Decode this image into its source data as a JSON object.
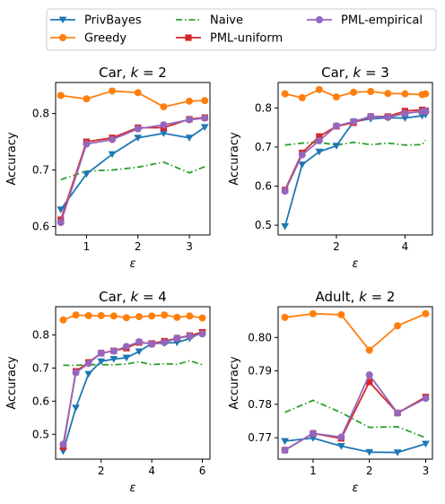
{
  "legend": {
    "placement": "top-center",
    "entries": [
      {
        "name": "PrivBayes",
        "color": "#1f77b4",
        "marker": "triangle-down",
        "linestyle": "solid"
      },
      {
        "name": "Naive",
        "color": "#2ca02c",
        "marker": "none",
        "linestyle": "dashdot"
      },
      {
        "name": "PML-empirical",
        "color": "#9467bd",
        "marker": "circle",
        "linestyle": "solid"
      },
      {
        "name": "Greedy",
        "color": "#ff7f0e",
        "marker": "circle",
        "linestyle": "solid"
      },
      {
        "name": "PML-uniform",
        "color": "#d62728",
        "marker": "square",
        "linestyle": "solid"
      }
    ]
  },
  "chart_data": [
    {
      "type": "line",
      "title": "Car, k = 2",
      "title_prefix": "Car, ",
      "title_var": "k",
      "title_suffix": " = 2",
      "xlabel": "ε",
      "ylabel": "Accuracy",
      "xlim": [
        0.4,
        3.4
      ],
      "ylim": [
        0.585,
        0.855
      ],
      "xticks": [
        1,
        2,
        3
      ],
      "yticks": [
        0.6,
        0.7,
        0.8
      ],
      "xticklabels": [
        "1",
        "2",
        "3"
      ],
      "yticklabels": [
        "0.6",
        "0.7",
        "0.8"
      ],
      "x": [
        0.5,
        1.0,
        1.5,
        2.0,
        2.5,
        3.0,
        3.3
      ],
      "series": [
        {
          "name": "PrivBayes",
          "values": [
            0.63,
            0.693,
            0.728,
            0.757,
            0.765,
            0.757,
            0.776
          ]
        },
        {
          "name": "Greedy",
          "values": [
            0.832,
            0.826,
            0.84,
            0.837,
            0.812,
            0.822,
            0.823
          ]
        },
        {
          "name": "Naive",
          "values": [
            0.683,
            0.698,
            0.7,
            0.705,
            0.714,
            0.695,
            0.706
          ]
        },
        {
          "name": "PML-uniform",
          "values": [
            0.612,
            0.75,
            0.757,
            0.775,
            0.775,
            0.79,
            0.793
          ]
        },
        {
          "name": "PML-empirical",
          "values": [
            0.607,
            0.746,
            0.754,
            0.773,
            0.78,
            0.789,
            0.792
          ]
        }
      ]
    },
    {
      "type": "line",
      "title": "Car, k = 3",
      "title_prefix": "Car, ",
      "title_var": "k",
      "title_suffix": " = 3",
      "xlabel": "ε",
      "ylabel": "Accuracy",
      "xlim": [
        0.3,
        4.8
      ],
      "ylim": [
        0.475,
        0.865
      ],
      "xticks": [
        2,
        4
      ],
      "yticks": [
        0.5,
        0.6,
        0.7,
        0.8
      ],
      "xticklabels": [
        "2",
        "4"
      ],
      "yticklabels": [
        "0.5",
        "0.6",
        "0.7",
        "0.8"
      ],
      "x": [
        0.5,
        1.0,
        1.5,
        2.0,
        2.5,
        3.0,
        3.5,
        4.0,
        4.5,
        4.6
      ],
      "series": [
        {
          "name": "PrivBayes",
          "values": [
            0.497,
            0.655,
            0.688,
            0.703,
            0.765,
            0.772,
            0.775,
            0.774,
            0.78,
            0.783
          ]
        },
        {
          "name": "Greedy",
          "values": [
            0.836,
            0.826,
            0.847,
            0.828,
            0.84,
            0.842,
            0.837,
            0.836,
            0.834,
            0.836
          ]
        },
        {
          "name": "Naive",
          "values": [
            0.705,
            0.71,
            0.712,
            0.705,
            0.712,
            0.706,
            0.71,
            0.705,
            0.706,
            0.718
          ]
        },
        {
          "name": "PML-uniform",
          "values": [
            0.59,
            0.685,
            0.727,
            0.753,
            0.762,
            0.778,
            0.778,
            0.792,
            0.795,
            0.793
          ]
        },
        {
          "name": "PML-empirical",
          "values": [
            0.587,
            0.68,
            0.716,
            0.754,
            0.765,
            0.778,
            0.776,
            0.786,
            0.791,
            0.792
          ]
        }
      ]
    },
    {
      "type": "line",
      "title": "Car, k = 4",
      "title_prefix": "Car, ",
      "title_var": "k",
      "title_suffix": " = 4",
      "xlabel": "ε",
      "ylabel": "Accuracy",
      "xlim": [
        0.2,
        6.3
      ],
      "ylim": [
        0.425,
        0.885
      ],
      "xticks": [
        2,
        4,
        6
      ],
      "yticks": [
        0.5,
        0.6,
        0.7,
        0.8
      ],
      "xticklabels": [
        "2",
        "4",
        "6"
      ],
      "yticklabels": [
        "0.5",
        "0.6",
        "0.7",
        "0.8"
      ],
      "x": [
        0.5,
        1.0,
        1.5,
        2.0,
        2.5,
        3.0,
        3.5,
        4.0,
        4.5,
        5.0,
        5.5,
        6.0
      ],
      "series": [
        {
          "name": "PrivBayes",
          "values": [
            0.449,
            0.58,
            0.682,
            0.72,
            0.727,
            0.731,
            0.75,
            0.774,
            0.775,
            0.777,
            0.789,
            0.808
          ]
        },
        {
          "name": "Greedy",
          "values": [
            0.845,
            0.86,
            0.858,
            0.858,
            0.857,
            0.852,
            0.855,
            0.857,
            0.86,
            0.853,
            0.857,
            0.851
          ]
        },
        {
          "name": "Naive",
          "values": [
            0.708,
            0.708,
            0.71,
            0.71,
            0.71,
            0.712,
            0.719,
            0.71,
            0.713,
            0.711,
            0.722,
            0.71
          ]
        },
        {
          "name": "PML-uniform",
          "values": [
            0.462,
            0.69,
            0.717,
            0.745,
            0.752,
            0.76,
            0.777,
            0.774,
            0.781,
            0.79,
            0.798,
            0.808
          ]
        },
        {
          "name": "PML-empirical",
          "values": [
            0.47,
            0.686,
            0.714,
            0.745,
            0.751,
            0.765,
            0.779,
            0.772,
            0.777,
            0.79,
            0.796,
            0.803
          ]
        }
      ]
    },
    {
      "type": "line",
      "title": "Adult, k = 2",
      "title_prefix": "Adult, ",
      "title_var": "k",
      "title_suffix": " = 2",
      "xlabel": "ε",
      "ylabel": "Accuracy",
      "xlim": [
        0.38,
        3.12
      ],
      "ylim": [
        0.7636,
        0.8092
      ],
      "xticks": [
        1,
        2,
        3
      ],
      "yticks": [
        0.77,
        0.78,
        0.79,
        0.8
      ],
      "xticklabels": [
        "1",
        "2",
        "3"
      ],
      "yticklabels": [
        "0.77",
        "0.78",
        "0.79",
        "0.80"
      ],
      "x": [
        0.5,
        1.0,
        1.5,
        2.0,
        2.5,
        3.0
      ],
      "series": [
        {
          "name": "PrivBayes",
          "values": [
            0.769,
            0.7699,
            0.7675,
            0.7657,
            0.7656,
            0.7682
          ]
        },
        {
          "name": "Greedy",
          "values": [
            0.806,
            0.8071,
            0.8068,
            0.7962,
            0.8035,
            0.8071
          ]
        },
        {
          "name": "Naive",
          "values": [
            0.7776,
            0.7812,
            0.7775,
            0.7731,
            0.7733,
            0.77
          ]
        },
        {
          "name": "PML-uniform",
          "values": [
            0.7663,
            0.7713,
            0.7698,
            0.7867,
            0.7774,
            0.7822
          ]
        },
        {
          "name": "PML-empirical",
          "values": [
            0.7663,
            0.7713,
            0.7702,
            0.7888,
            0.7774,
            0.7818
          ]
        }
      ]
    }
  ]
}
